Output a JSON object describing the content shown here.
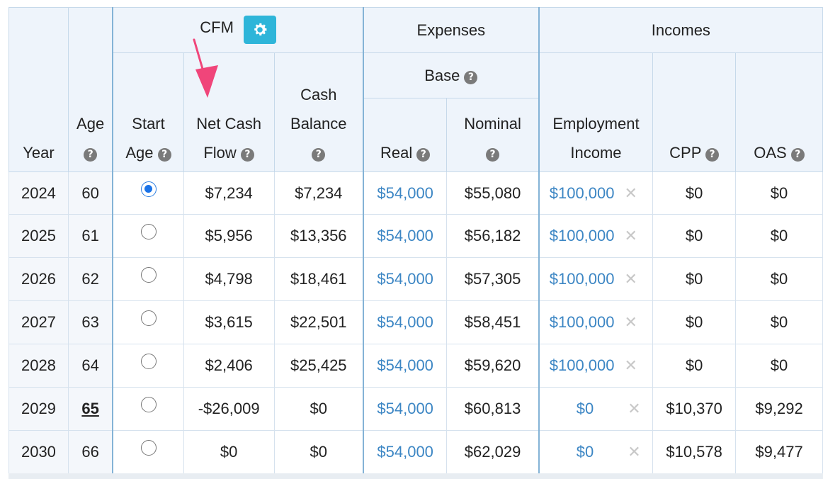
{
  "header": {
    "year": "Year",
    "age": "Age",
    "cfm": "CFM",
    "start_age_l1": "Start",
    "start_age_l2": "Age",
    "net_cash_l1": "Net Cash",
    "net_cash_l2": "Flow",
    "cash_balance_l1": "Cash",
    "cash_balance_l2": "Balance",
    "expenses": "Expenses",
    "base": "Base",
    "real": "Real",
    "nominal": "Nominal",
    "incomes": "Incomes",
    "employment_l1": "Employment",
    "employment_l2": "Income",
    "cpp": "CPP",
    "oas": "OAS"
  },
  "colors": {
    "link_blue": "#3c86c4",
    "gear_bg": "#2eb5d9",
    "arrow": "#f0457a",
    "radio_selected": "#1a73e8"
  },
  "selected_start_row": 0,
  "rows": [
    {
      "year": "2024",
      "age": "60",
      "net": "$7,234",
      "cash": "$7,234",
      "real": "$54,000",
      "nominal": "$55,080",
      "emp": "$100,000",
      "cpp": "$0",
      "oas": "$0"
    },
    {
      "year": "2025",
      "age": "61",
      "net": "$5,956",
      "cash": "$13,356",
      "real": "$54,000",
      "nominal": "$56,182",
      "emp": "$100,000",
      "cpp": "$0",
      "oas": "$0"
    },
    {
      "year": "2026",
      "age": "62",
      "net": "$4,798",
      "cash": "$18,461",
      "real": "$54,000",
      "nominal": "$57,305",
      "emp": "$100,000",
      "cpp": "$0",
      "oas": "$0"
    },
    {
      "year": "2027",
      "age": "63",
      "net": "$3,615",
      "cash": "$22,501",
      "real": "$54,000",
      "nominal": "$58,451",
      "emp": "$100,000",
      "cpp": "$0",
      "oas": "$0"
    },
    {
      "year": "2028",
      "age": "64",
      "net": "$2,406",
      "cash": "$25,425",
      "real": "$54,000",
      "nominal": "$59,620",
      "emp": "$100,000",
      "cpp": "$0",
      "oas": "$0"
    },
    {
      "year": "2029",
      "age": "65",
      "net": "-$26,009",
      "cash": "$0",
      "real": "$54,000",
      "nominal": "$60,813",
      "emp": "$0",
      "cpp": "$10,370",
      "oas": "$9,292"
    },
    {
      "year": "2030",
      "age": "66",
      "net": "$0",
      "cash": "$0",
      "real": "$54,000",
      "nominal": "$62,029",
      "emp": "$0",
      "cpp": "$10,578",
      "oas": "$9,477"
    }
  ]
}
